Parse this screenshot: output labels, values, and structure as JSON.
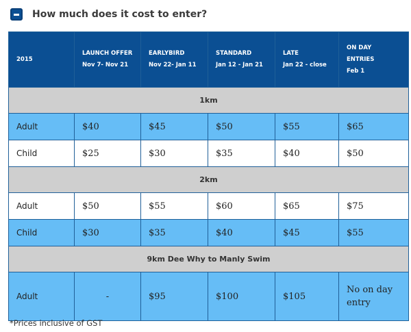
{
  "header": {
    "title": "How much does it cost to enter?"
  },
  "columns": [
    {
      "line1": "2015",
      "line2": ""
    },
    {
      "line1": "LAUNCH OFFER",
      "line2": "Nov 7- Nov 21"
    },
    {
      "line1": "EARLYBIRD",
      "line2": "Nov 22- Jan 11"
    },
    {
      "line1": "STANDARD",
      "line2": "Jan 12 - Jan 21"
    },
    {
      "line1": "LATE",
      "line2": "Jan 22 - close"
    },
    {
      "line1": "ON DAY",
      "line2": "ENTRIES",
      "line3": "Feb 1"
    }
  ],
  "sections": [
    {
      "name": "1km",
      "rows": [
        {
          "label": "Adult",
          "values": [
            "$40",
            "$45",
            "$50",
            "$55",
            "$65"
          ]
        },
        {
          "label": "Child",
          "values": [
            "$25",
            "$30",
            "$35",
            "$40",
            "$50"
          ]
        }
      ]
    },
    {
      "name": "2km",
      "rows": [
        {
          "label": "Adult",
          "values": [
            "$50",
            "$55",
            "$60",
            "$65",
            "$75"
          ]
        },
        {
          "label": "Child",
          "values": [
            "$30",
            "$35",
            "$40",
            "$45",
            "$55"
          ]
        }
      ]
    },
    {
      "name": "9km Dee Why to Manly Swim",
      "rows": [
        {
          "label": "Adult",
          "values": [
            "-",
            "$95",
            "$100",
            "$105",
            "No on day entry"
          ]
        }
      ]
    }
  ],
  "footnote": "*Prices inclusive of GST",
  "colors": {
    "header_bg": "#0b4f93",
    "row_blue": "#66bdf6",
    "section_bg": "#cfcfcf"
  }
}
